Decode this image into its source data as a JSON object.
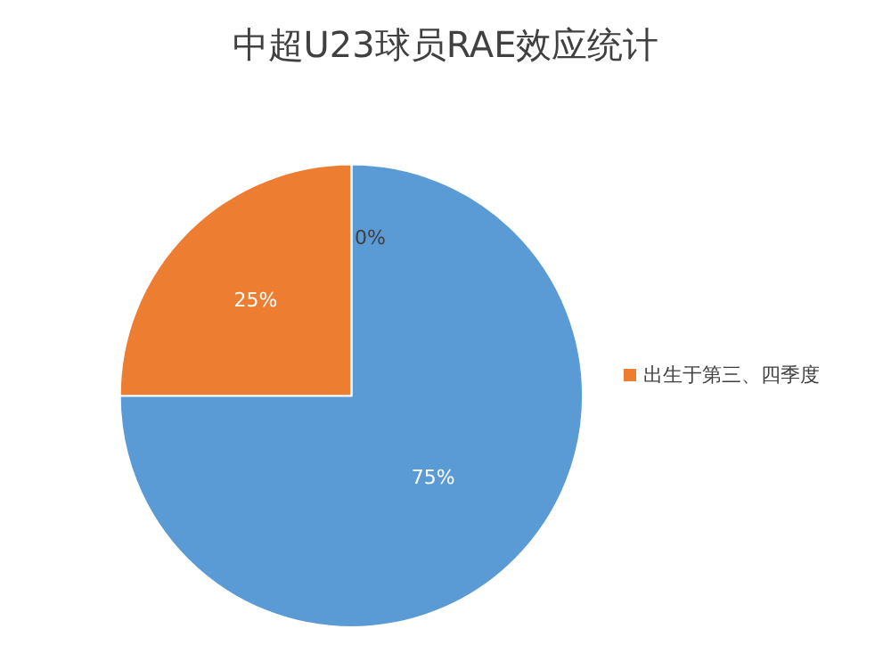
{
  "chart_data": {
    "type": "pie",
    "title": "中超U23球员RAE效应统计",
    "categories": [
      null,
      "出生于第三、四季度",
      null
    ],
    "values": [
      75,
      25,
      0
    ],
    "colors": [
      "#5b9bd5",
      "#ed7d31",
      "#a5a5a5"
    ],
    "value_labels": [
      "75%",
      "25%",
      "0%"
    ],
    "legend": "right"
  }
}
